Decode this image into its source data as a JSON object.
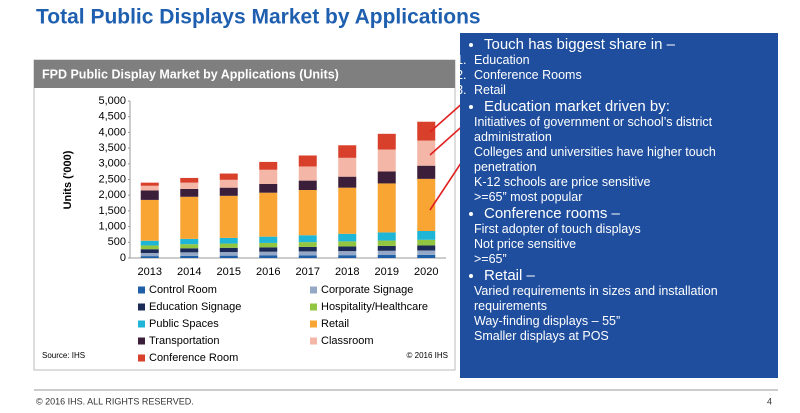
{
  "slide_title": "Total Public Displays Market by Applications",
  "chart_data": {
    "type": "stacked_bar",
    "title": "FPD Public Display Market by Applications (Units)",
    "y_label": "Units ('000)",
    "source": "Source: IHS",
    "copyright": "© 2016 IHS",
    "categories": [
      "2013",
      "2014",
      "2015",
      "2016",
      "2017",
      "2018",
      "2019",
      "2020"
    ],
    "ylim": [
      0,
      5000
    ],
    "yticks": [
      0,
      500,
      {
        "value": 1000,
        "label": "1,000"
      },
      {
        "value": 1500,
        "label": "1,500"
      },
      {
        "value": 2000,
        "label": "2,000"
      },
      {
        "value": 2500,
        "label": "2,500"
      },
      {
        "value": 3000,
        "label": "3,000"
      },
      {
        "value": 3500,
        "label": "3,500"
      },
      {
        "value": 4000,
        "label": "4,000"
      },
      {
        "value": 4500,
        "label": "4,500"
      },
      {
        "value": 5000,
        "label": "5,000"
      }
    ],
    "series": [
      {
        "name": "Control Room",
        "color": "#1f5fa8",
        "values": [
          60,
          70,
          75,
          80,
          85,
          90,
          95,
          100
        ]
      },
      {
        "name": "Corporate Signage",
        "color": "#95a9c6",
        "values": [
          100,
          110,
          115,
          120,
          125,
          130,
          135,
          140
        ]
      },
      {
        "name": "Education Signage",
        "color": "#1b2a57",
        "values": [
          120,
          130,
          135,
          140,
          145,
          150,
          155,
          160
        ]
      },
      {
        "name": "Hospitality/Healthcare",
        "color": "#92c540",
        "values": [
          120,
          130,
          135,
          140,
          150,
          160,
          170,
          180
        ]
      },
      {
        "name": "Public Spaces",
        "color": "#1fb5d6",
        "values": [
          150,
          170,
          180,
          200,
          220,
          240,
          260,
          280
        ]
      },
      {
        "name": "Retail",
        "color": "#f9a533",
        "values": [
          1300,
          1340,
          1340,
          1400,
          1440,
          1470,
          1560,
          1660
        ]
      },
      {
        "name": "Transportation",
        "color": "#3b1f3a",
        "values": [
          300,
          250,
          260,
          280,
          300,
          350,
          380,
          420
        ]
      },
      {
        "name": "Classroom",
        "color": "#f4b6a6",
        "values": [
          150,
          200,
          250,
          450,
          450,
          600,
          700,
          800
        ]
      },
      {
        "name": "Conference Room",
        "color": "#d9402b",
        "values": [
          100,
          150,
          200,
          250,
          350,
          400,
          500,
          600
        ]
      }
    ]
  },
  "panel": {
    "sections": [
      {
        "heading": "Touch has biggest share in –",
        "numbered": true,
        "items": [
          "Education",
          "Conference Rooms",
          "Retail"
        ]
      },
      {
        "heading": "Education market driven by:",
        "items": [
          "Initiatives of government or school’s district administration",
          "Colleges and universities have higher touch  penetration",
          "K-12 schools are price sensitive",
          ">=65” most popular"
        ]
      },
      {
        "heading": "Conference rooms –",
        "items": [
          "First adopter of touch displays",
          "Not price sensitive",
          ">=65”"
        ]
      },
      {
        "heading": "Retail –",
        "items": [
          "Varied requirements in sizes and installation requirements",
          "Way-finding displays – 55”",
          "Smaller displays at POS"
        ]
      }
    ]
  },
  "footer": {
    "copyright": "© 2016 IHS. ALL RIGHTS RESERVED.",
    "page": "4"
  }
}
